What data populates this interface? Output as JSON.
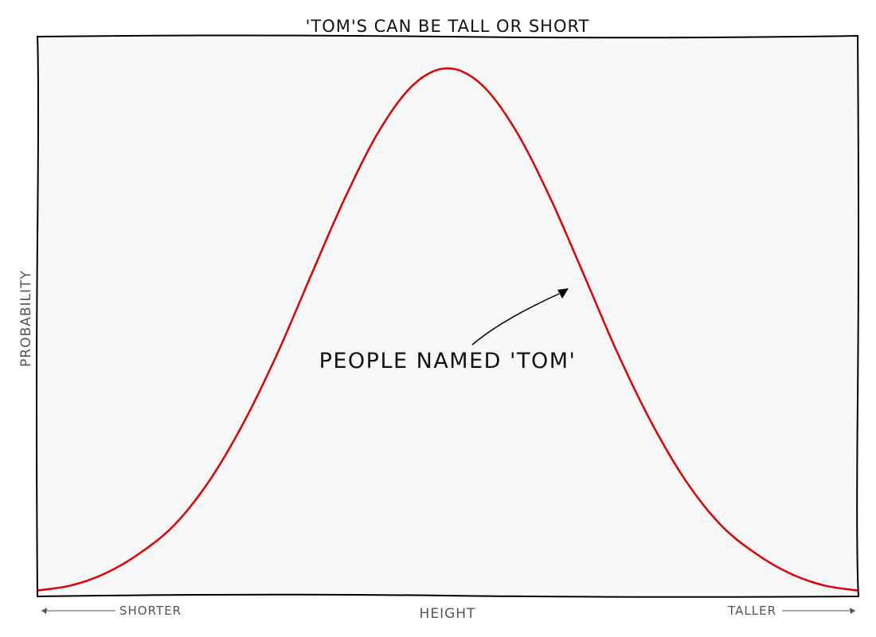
{
  "chart_data": {
    "type": "line",
    "title": "'Tom's can be tall or short",
    "xlabel": "Height",
    "ylabel": "Probability",
    "x_tick_labels": {
      "left": "Shorter",
      "right": "Taller"
    },
    "x": [
      -3.0,
      -2.75,
      -2.5,
      -2.25,
      -2.0,
      -1.75,
      -1.5,
      -1.25,
      -1.0,
      -0.75,
      -0.5,
      -0.25,
      0.0,
      0.25,
      0.5,
      0.75,
      1.0,
      1.25,
      1.5,
      1.75,
      2.0,
      2.25,
      2.5,
      2.75,
      3.0
    ],
    "series": [
      {
        "color": "#e00000",
        "values": [
          0.011,
          0.021,
          0.044,
          0.082,
          0.135,
          0.216,
          0.325,
          0.457,
          0.607,
          0.755,
          0.882,
          0.969,
          1.0,
          0.969,
          0.882,
          0.755,
          0.607,
          0.457,
          0.325,
          0.216,
          0.135,
          0.082,
          0.044,
          0.021,
          0.011
        ]
      }
    ],
    "ylim": [
      0,
      1.06
    ],
    "xlim": [
      -3,
      3
    ],
    "annotation": {
      "text": "People named 'Tom'",
      "x": 0.9,
      "y": 0.61
    },
    "grid": false,
    "colors": {
      "background": "#f8f8f8",
      "frame": "#000000",
      "line": "#e00000",
      "axis_text": "#555555"
    }
  }
}
